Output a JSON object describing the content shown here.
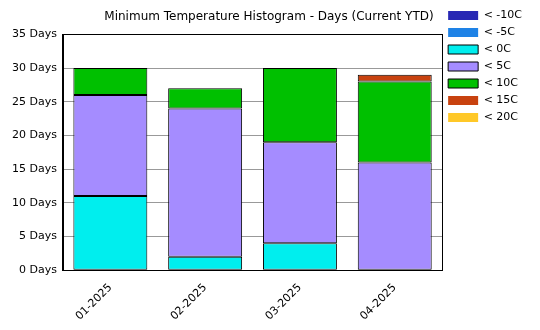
{
  "chart_data": {
    "type": "bar",
    "title": "Minimum Temperature Histogram - Days (Current YTD)",
    "categories": [
      "01-2025",
      "02-2025",
      "03-2025",
      "04-2025"
    ],
    "stacked": true,
    "grid": true,
    "legend": "upper right",
    "ylim": [
      0,
      35
    ],
    "yticks": [
      {
        "value": 0,
        "label": "0 Days"
      },
      {
        "value": 5,
        "label": "5 Days"
      },
      {
        "value": 10,
        "label": "10 Days"
      },
      {
        "value": 15,
        "label": "15 Days"
      },
      {
        "value": 20,
        "label": "20 Days"
      },
      {
        "value": 25,
        "label": "25 Days"
      },
      {
        "value": 30,
        "label": "30 Days"
      },
      {
        "value": 35,
        "label": "35 Days"
      }
    ],
    "series": [
      {
        "name": "< -10C",
        "color": "#2828b4",
        "values": [
          0,
          0,
          0,
          0
        ]
      },
      {
        "name": "< -5C",
        "color": "#1e82e6",
        "values": [
          0,
          0,
          0,
          0
        ]
      },
      {
        "name": "< 0C",
        "color": "#00eeee",
        "values": [
          11,
          2,
          4,
          0
        ]
      },
      {
        "name": "< 5C",
        "color": "#a58cff",
        "values": [
          15,
          22,
          15,
          16
        ]
      },
      {
        "name": "< 10C",
        "color": "#00c000",
        "values": [
          4,
          3,
          11,
          12
        ]
      },
      {
        "name": "< 15C",
        "color": "#c8420f",
        "values": [
          0,
          0,
          0,
          1
        ]
      },
      {
        "name": "< 20C",
        "color": "#ffc828",
        "values": [
          0,
          0,
          0,
          0
        ]
      }
    ]
  }
}
